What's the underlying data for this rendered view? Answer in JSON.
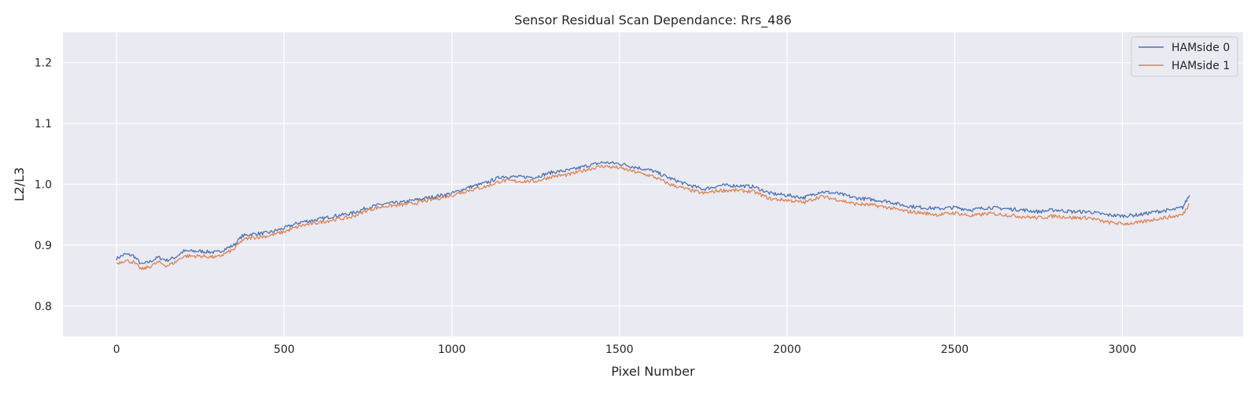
{
  "chart_data": {
    "type": "line",
    "title": "Sensor Residual Scan Dependance: Rrs_486",
    "xlabel": "Pixel Number",
    "ylabel": "L2/L3",
    "xlim": [
      -160,
      3360
    ],
    "ylim": [
      0.75,
      1.25
    ],
    "xticks": [
      0,
      500,
      1000,
      1500,
      2000,
      2500,
      3000
    ],
    "yticks": [
      0.8,
      0.9,
      1.0,
      1.1,
      1.2
    ],
    "xtick_labels": [
      "0",
      "500",
      "1000",
      "1500",
      "2000",
      "2500",
      "3000"
    ],
    "ytick_labels": [
      "0.8",
      "0.9",
      "1.0",
      "1.1",
      "1.2"
    ],
    "grid": true,
    "legend_position": "top-right",
    "series": [
      {
        "name": "HAMside 0",
        "color": "#4c72b0",
        "x": [
          0,
          25,
          50,
          75,
          100,
          125,
          150,
          175,
          200,
          250,
          300,
          350,
          375,
          400,
          450,
          500,
          550,
          600,
          650,
          700,
          750,
          800,
          850,
          900,
          950,
          1000,
          1050,
          1100,
          1150,
          1200,
          1250,
          1300,
          1350,
          1400,
          1450,
          1500,
          1550,
          1600,
          1650,
          1700,
          1750,
          1800,
          1850,
          1900,
          1950,
          2000,
          2050,
          2100,
          2150,
          2200,
          2250,
          2300,
          2350,
          2400,
          2450,
          2500,
          2550,
          2600,
          2650,
          2700,
          2750,
          2800,
          2850,
          2900,
          2950,
          3000,
          3050,
          3100,
          3150,
          3180,
          3200
        ],
        "y": [
          0.878,
          0.885,
          0.883,
          0.868,
          0.873,
          0.88,
          0.875,
          0.88,
          0.89,
          0.89,
          0.888,
          0.9,
          0.915,
          0.918,
          0.92,
          0.928,
          0.938,
          0.942,
          0.948,
          0.952,
          0.962,
          0.968,
          0.97,
          0.975,
          0.98,
          0.985,
          0.995,
          1.002,
          1.013,
          1.012,
          1.012,
          1.02,
          1.023,
          1.03,
          1.036,
          1.034,
          1.028,
          1.022,
          1.01,
          1.0,
          0.992,
          0.998,
          0.998,
          0.996,
          0.985,
          0.982,
          0.978,
          0.988,
          0.985,
          0.978,
          0.975,
          0.972,
          0.965,
          0.962,
          0.96,
          0.962,
          0.958,
          0.962,
          0.96,
          0.958,
          0.955,
          0.958,
          0.955,
          0.955,
          0.95,
          0.948,
          0.95,
          0.955,
          0.958,
          0.962,
          0.982
        ]
      },
      {
        "name": "HAMside 1",
        "color": "#dd8452",
        "x": [
          0,
          25,
          50,
          75,
          100,
          125,
          150,
          175,
          200,
          250,
          300,
          350,
          375,
          400,
          450,
          500,
          550,
          600,
          650,
          700,
          750,
          800,
          850,
          900,
          950,
          1000,
          1050,
          1100,
          1150,
          1200,
          1250,
          1300,
          1350,
          1400,
          1450,
          1500,
          1550,
          1600,
          1650,
          1700,
          1750,
          1800,
          1850,
          1900,
          1950,
          2000,
          2050,
          2100,
          2150,
          2200,
          2250,
          2300,
          2350,
          2400,
          2450,
          2500,
          2550,
          2600,
          2650,
          2700,
          2750,
          2800,
          2850,
          2900,
          2950,
          3000,
          3050,
          3100,
          3150,
          3180,
          3200
        ],
        "y": [
          0.87,
          0.875,
          0.872,
          0.86,
          0.865,
          0.872,
          0.866,
          0.872,
          0.882,
          0.882,
          0.88,
          0.893,
          0.908,
          0.912,
          0.915,
          0.922,
          0.932,
          0.937,
          0.942,
          0.946,
          0.958,
          0.964,
          0.966,
          0.97,
          0.976,
          0.982,
          0.99,
          0.996,
          1.006,
          1.005,
          1.005,
          1.013,
          1.016,
          1.024,
          1.03,
          1.027,
          1.02,
          1.013,
          1.0,
          0.992,
          0.985,
          0.99,
          0.99,
          0.988,
          0.976,
          0.974,
          0.97,
          0.98,
          0.975,
          0.968,
          0.966,
          0.962,
          0.956,
          0.953,
          0.95,
          0.953,
          0.948,
          0.952,
          0.95,
          0.947,
          0.945,
          0.948,
          0.945,
          0.945,
          0.938,
          0.935,
          0.937,
          0.943,
          0.947,
          0.95,
          0.968
        ]
      }
    ]
  }
}
